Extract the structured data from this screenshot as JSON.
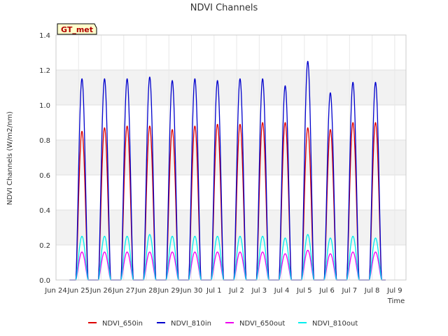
{
  "chart_data": {
    "type": "line",
    "title": "NDVI Channels",
    "xlabel": "Time",
    "ylabel": "NDVI Channels (W/m2/nm)",
    "badge": "GT_met",
    "ylim": [
      0.0,
      1.4
    ],
    "yticks": [
      0.0,
      0.2,
      0.4,
      0.6,
      0.8,
      1.0,
      1.2,
      1.4
    ],
    "ytick_labels": [
      "0.0",
      "0.2",
      "0.4",
      "0.6",
      "0.8",
      "1.0",
      "1.2",
      "1.4"
    ],
    "xlim": [
      0,
      15.5
    ],
    "xticks": [
      0,
      1,
      2,
      3,
      4,
      5,
      6,
      7,
      8,
      9,
      10,
      11,
      12,
      13,
      14,
      15
    ],
    "xtick_labels": [
      "Jun 24",
      "Jun 25",
      "Jun 26",
      "Jun 27",
      "Jun 28",
      "Jun 29",
      "Jun 30",
      "Jul 1",
      "Jul 2",
      "Jul 3",
      "Jul 4",
      "Jul 5",
      "Jul 6",
      "Jul 7",
      "Jul 8",
      "Jul 9"
    ],
    "grid": true,
    "legend_position": "bottom",
    "day_centers": [
      1.15,
      2.15,
      3.15,
      4.15,
      5.15,
      6.15,
      7.15,
      8.15,
      9.15,
      10.15,
      11.15,
      12.15,
      13.15,
      14.15
    ],
    "series": [
      {
        "name": "NDVI_650in",
        "color": "#dd0000",
        "daily_peaks": [
          0.85,
          0.87,
          0.88,
          0.88,
          0.86,
          0.88,
          0.89,
          0.89,
          0.9,
          0.9,
          0.87,
          0.86,
          0.9,
          0.9
        ]
      },
      {
        "name": "NDVI_810in",
        "color": "#0000cc",
        "daily_peaks": [
          1.15,
          1.15,
          1.15,
          1.16,
          1.14,
          1.15,
          1.14,
          1.15,
          1.15,
          1.11,
          1.25,
          1.07,
          1.13,
          1.13
        ]
      },
      {
        "name": "NDVI_650out",
        "color": "#ee00ee",
        "daily_peaks": [
          0.16,
          0.16,
          0.16,
          0.16,
          0.16,
          0.16,
          0.16,
          0.16,
          0.16,
          0.15,
          0.17,
          0.15,
          0.16,
          0.16
        ]
      },
      {
        "name": "NDVI_810out",
        "color": "#00eeee",
        "daily_peaks": [
          0.25,
          0.25,
          0.25,
          0.26,
          0.25,
          0.25,
          0.25,
          0.25,
          0.25,
          0.24,
          0.26,
          0.24,
          0.25,
          0.24
        ]
      }
    ]
  }
}
